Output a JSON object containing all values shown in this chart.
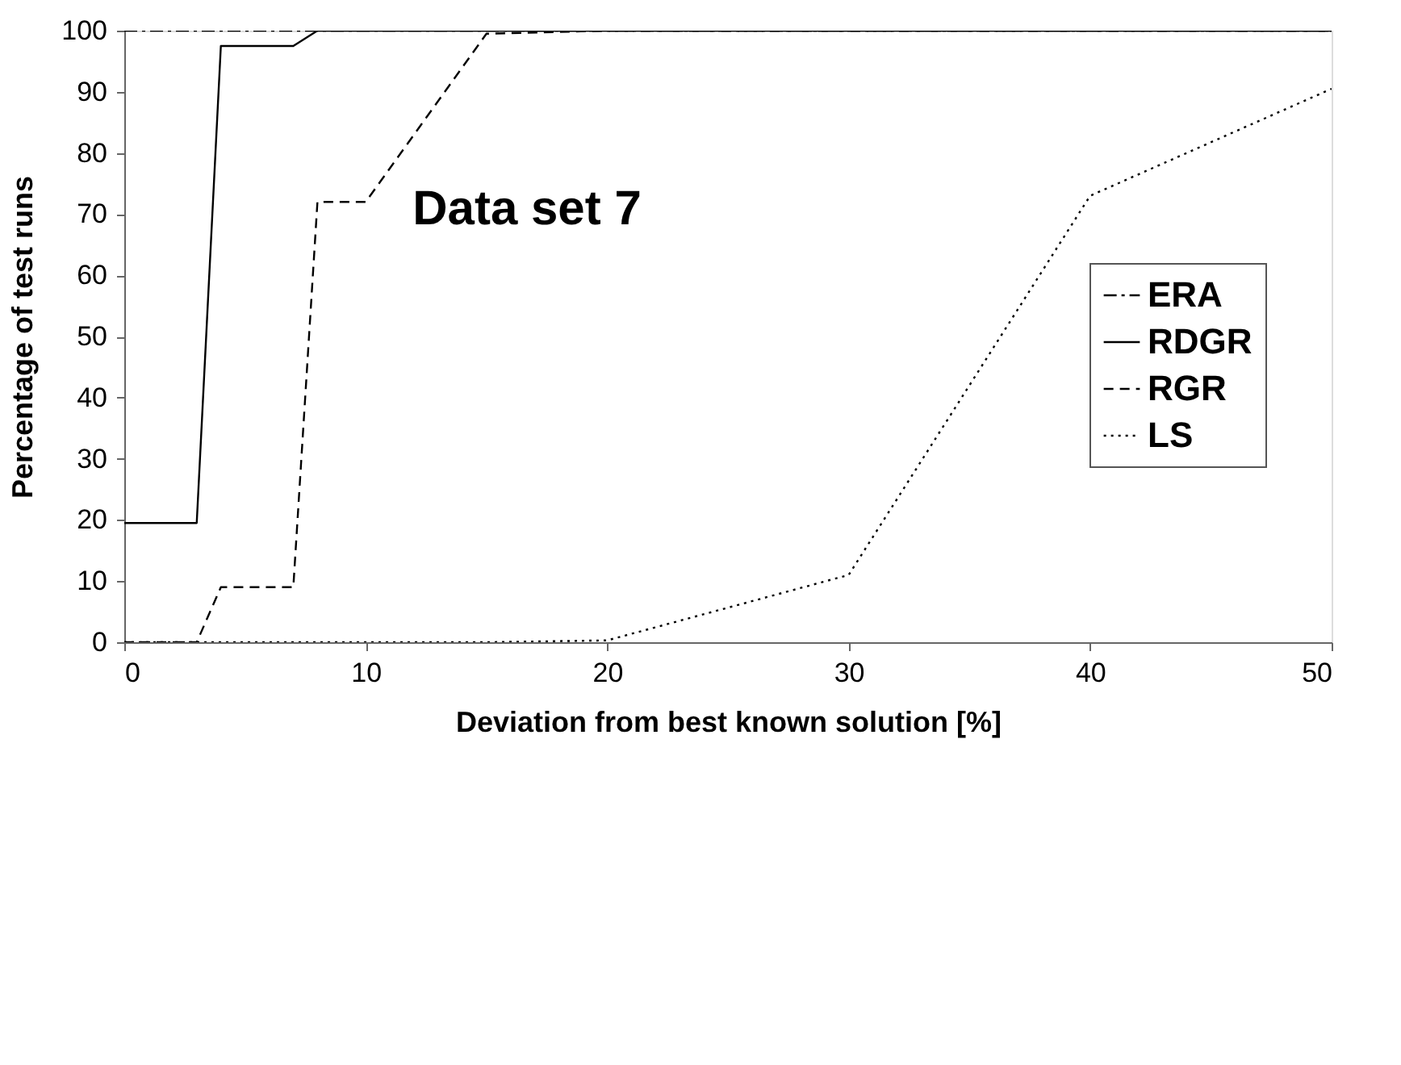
{
  "chart_data": {
    "type": "line",
    "title": "Data set 7",
    "xlabel": "Deviation from best known solution [%]",
    "ylabel": "Percentage of test runs",
    "x": [
      0,
      3,
      4,
      7,
      8,
      10,
      15,
      20,
      30,
      40,
      50
    ],
    "series": [
      {
        "name": "ERA",
        "color": "#000000",
        "line_style": "dashdot",
        "values": [
          100,
          100,
          100,
          100,
          100,
          100,
          100,
          100,
          100,
          100,
          100
        ]
      },
      {
        "name": "RDGR",
        "color": "#000000",
        "line_style": "solid",
        "values": [
          19.5,
          19.5,
          97.5,
          97.5,
          100,
          100,
          100,
          100,
          100,
          100,
          100
        ]
      },
      {
        "name": "RGR",
        "color": "#000000",
        "line_style": "dashed",
        "values": [
          0,
          0,
          9,
          9,
          72,
          72,
          99.5,
          100,
          100,
          100,
          100
        ]
      },
      {
        "name": "LS",
        "color": "#000000",
        "line_style": "dotted",
        "values": [
          0,
          0,
          0,
          0,
          0,
          0,
          0,
          0.3,
          11,
          73,
          90.5
        ]
      }
    ],
    "xlim": [
      0,
      50
    ],
    "xticks": [
      0,
      10,
      20,
      30,
      40,
      50
    ],
    "ylim": [
      0,
      100
    ],
    "yticks": [
      0,
      10,
      20,
      30,
      40,
      50,
      60,
      70,
      80,
      90,
      100
    ],
    "grid": false,
    "legend": "right",
    "marker": "none"
  }
}
